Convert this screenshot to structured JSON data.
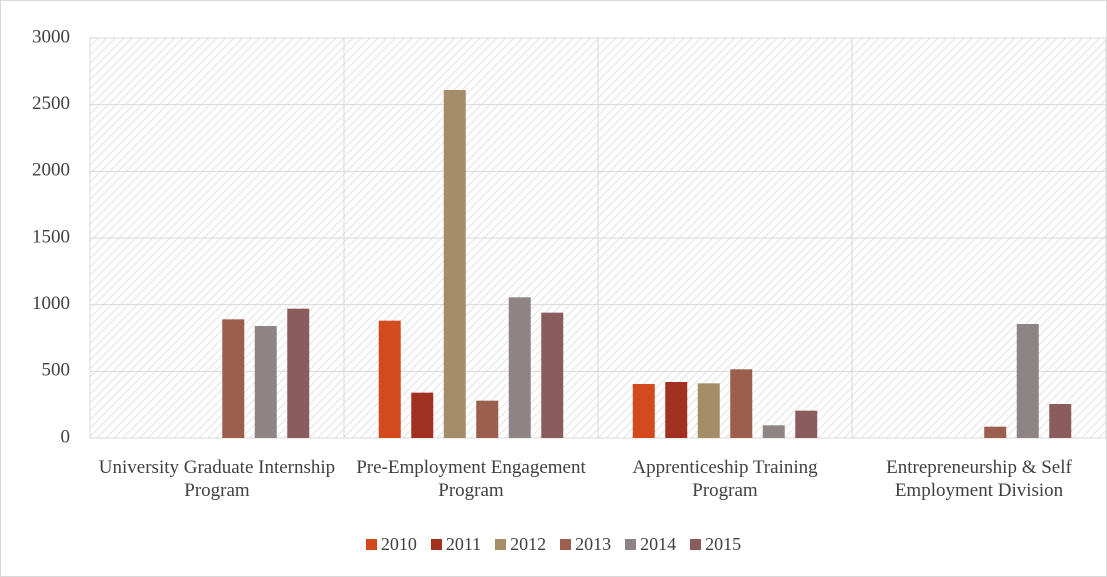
{
  "chart_data": {
    "type": "bar",
    "categories": [
      "University Graduate Internship Program",
      "Pre-Employment Engagement Program",
      "Apprenticeship Training Program",
      "Entrepreneurship & Self Employment Division"
    ],
    "series": [
      {
        "name": "2010",
        "color": "#d24a1e",
        "values": [
          null,
          880,
          405,
          null
        ]
      },
      {
        "name": "2011",
        "color": "#a0301f",
        "values": [
          null,
          340,
          420,
          null
        ]
      },
      {
        "name": "2012",
        "color": "#a58d6a",
        "values": [
          null,
          2610,
          410,
          null
        ]
      },
      {
        "name": "2013",
        "color": "#9c5f4d",
        "values": [
          890,
          280,
          515,
          85
        ]
      },
      {
        "name": "2014",
        "color": "#8f8485",
        "values": [
          840,
          1055,
          95,
          855
        ]
      },
      {
        "name": "2015",
        "color": "#8b5c5e",
        "values": [
          970,
          940,
          205,
          255
        ]
      }
    ],
    "ylim": [
      0,
      3000
    ],
    "yticks": [
      0,
      500,
      1000,
      1500,
      2000,
      2500,
      3000
    ],
    "grid": true,
    "legend": "bottom"
  }
}
